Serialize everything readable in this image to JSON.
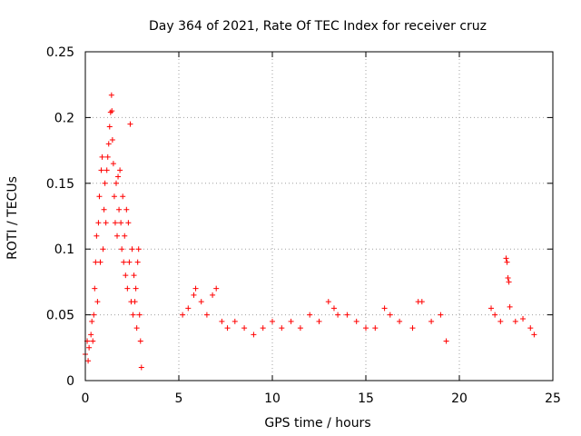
{
  "chart_data": {
    "type": "scatter",
    "title": "Day 364 of 2021, Rate Of TEC Index for receiver cruz",
    "xlabel": "GPS time / hours",
    "ylabel": "ROTI / TECUs",
    "xlim": [
      0,
      25
    ],
    "ylim": [
      0,
      0.25
    ],
    "xticks": [
      0,
      5,
      10,
      15,
      20,
      25
    ],
    "xtick_labels": [
      "0",
      "5",
      "10",
      "15",
      "20",
      "25"
    ],
    "yticks": [
      0,
      0.05,
      0.1,
      0.15,
      0.2,
      0.25
    ],
    "ytick_labels": [
      "0",
      "0.05",
      "0.1",
      "0.15",
      "0.2",
      "0.25"
    ],
    "grid": true,
    "marker": "+",
    "series_color": "#ff0000",
    "series": [
      {
        "name": "ROTI",
        "points": [
          [
            0.0,
            0.02
          ],
          [
            0.1,
            0.03
          ],
          [
            0.15,
            0.015
          ],
          [
            0.2,
            0.025
          ],
          [
            0.3,
            0.035
          ],
          [
            0.35,
            0.045
          ],
          [
            0.4,
            0.03
          ],
          [
            0.45,
            0.05
          ],
          [
            0.5,
            0.07
          ],
          [
            0.55,
            0.09
          ],
          [
            0.6,
            0.11
          ],
          [
            0.65,
            0.06
          ],
          [
            0.7,
            0.12
          ],
          [
            0.75,
            0.14
          ],
          [
            0.8,
            0.09
          ],
          [
            0.85,
            0.16
          ],
          [
            0.9,
            0.17
          ],
          [
            0.95,
            0.1
          ],
          [
            1.0,
            0.13
          ],
          [
            1.05,
            0.15
          ],
          [
            1.1,
            0.12
          ],
          [
            1.15,
            0.16
          ],
          [
            1.2,
            0.17
          ],
          [
            1.25,
            0.18
          ],
          [
            1.3,
            0.193
          ],
          [
            1.35,
            0.204
          ],
          [
            1.4,
            0.217
          ],
          [
            1.42,
            0.205
          ],
          [
            1.45,
            0.183
          ],
          [
            1.5,
            0.165
          ],
          [
            1.55,
            0.14
          ],
          [
            1.6,
            0.12
          ],
          [
            1.65,
            0.15
          ],
          [
            1.7,
            0.11
          ],
          [
            1.75,
            0.155
          ],
          [
            1.8,
            0.13
          ],
          [
            1.85,
            0.16
          ],
          [
            1.9,
            0.12
          ],
          [
            1.95,
            0.1
          ],
          [
            2.0,
            0.14
          ],
          [
            2.05,
            0.09
          ],
          [
            2.1,
            0.11
          ],
          [
            2.15,
            0.08
          ],
          [
            2.2,
            0.13
          ],
          [
            2.25,
            0.07
          ],
          [
            2.3,
            0.12
          ],
          [
            2.35,
            0.09
          ],
          [
            2.4,
            0.195
          ],
          [
            2.45,
            0.06
          ],
          [
            2.5,
            0.1
          ],
          [
            2.55,
            0.05
          ],
          [
            2.6,
            0.08
          ],
          [
            2.65,
            0.06
          ],
          [
            2.7,
            0.07
          ],
          [
            2.75,
            0.04
          ],
          [
            2.8,
            0.09
          ],
          [
            2.85,
            0.1
          ],
          [
            2.9,
            0.05
          ],
          [
            2.95,
            0.03
          ],
          [
            3.0,
            0.01
          ],
          [
            5.2,
            0.05
          ],
          [
            5.5,
            0.055
          ],
          [
            5.8,
            0.065
          ],
          [
            5.9,
            0.07
          ],
          [
            6.2,
            0.06
          ],
          [
            6.5,
            0.05
          ],
          [
            6.8,
            0.065
          ],
          [
            7.0,
            0.07
          ],
          [
            7.3,
            0.045
          ],
          [
            7.6,
            0.04
          ],
          [
            8.0,
            0.045
          ],
          [
            8.5,
            0.04
          ],
          [
            9.0,
            0.035
          ],
          [
            9.5,
            0.04
          ],
          [
            10.0,
            0.045
          ],
          [
            10.5,
            0.04
          ],
          [
            11.0,
            0.045
          ],
          [
            11.5,
            0.04
          ],
          [
            12.0,
            0.05
          ],
          [
            12.5,
            0.045
          ],
          [
            13.0,
            0.06
          ],
          [
            13.3,
            0.055
          ],
          [
            13.5,
            0.05
          ],
          [
            14.0,
            0.05
          ],
          [
            14.5,
            0.045
          ],
          [
            15.0,
            0.04
          ],
          [
            15.5,
            0.04
          ],
          [
            16.0,
            0.055
          ],
          [
            16.3,
            0.05
          ],
          [
            16.8,
            0.045
          ],
          [
            17.5,
            0.04
          ],
          [
            17.8,
            0.06
          ],
          [
            18.0,
            0.06
          ],
          [
            18.5,
            0.045
          ],
          [
            19.0,
            0.05
          ],
          [
            19.3,
            0.03
          ],
          [
            21.7,
            0.055
          ],
          [
            21.9,
            0.05
          ],
          [
            22.2,
            0.045
          ],
          [
            22.5,
            0.093
          ],
          [
            22.55,
            0.09
          ],
          [
            22.6,
            0.078
          ],
          [
            22.65,
            0.075
          ],
          [
            22.7,
            0.056
          ],
          [
            23.0,
            0.045
          ],
          [
            23.4,
            0.047
          ],
          [
            23.8,
            0.04
          ],
          [
            24.0,
            0.035
          ]
        ]
      }
    ]
  }
}
